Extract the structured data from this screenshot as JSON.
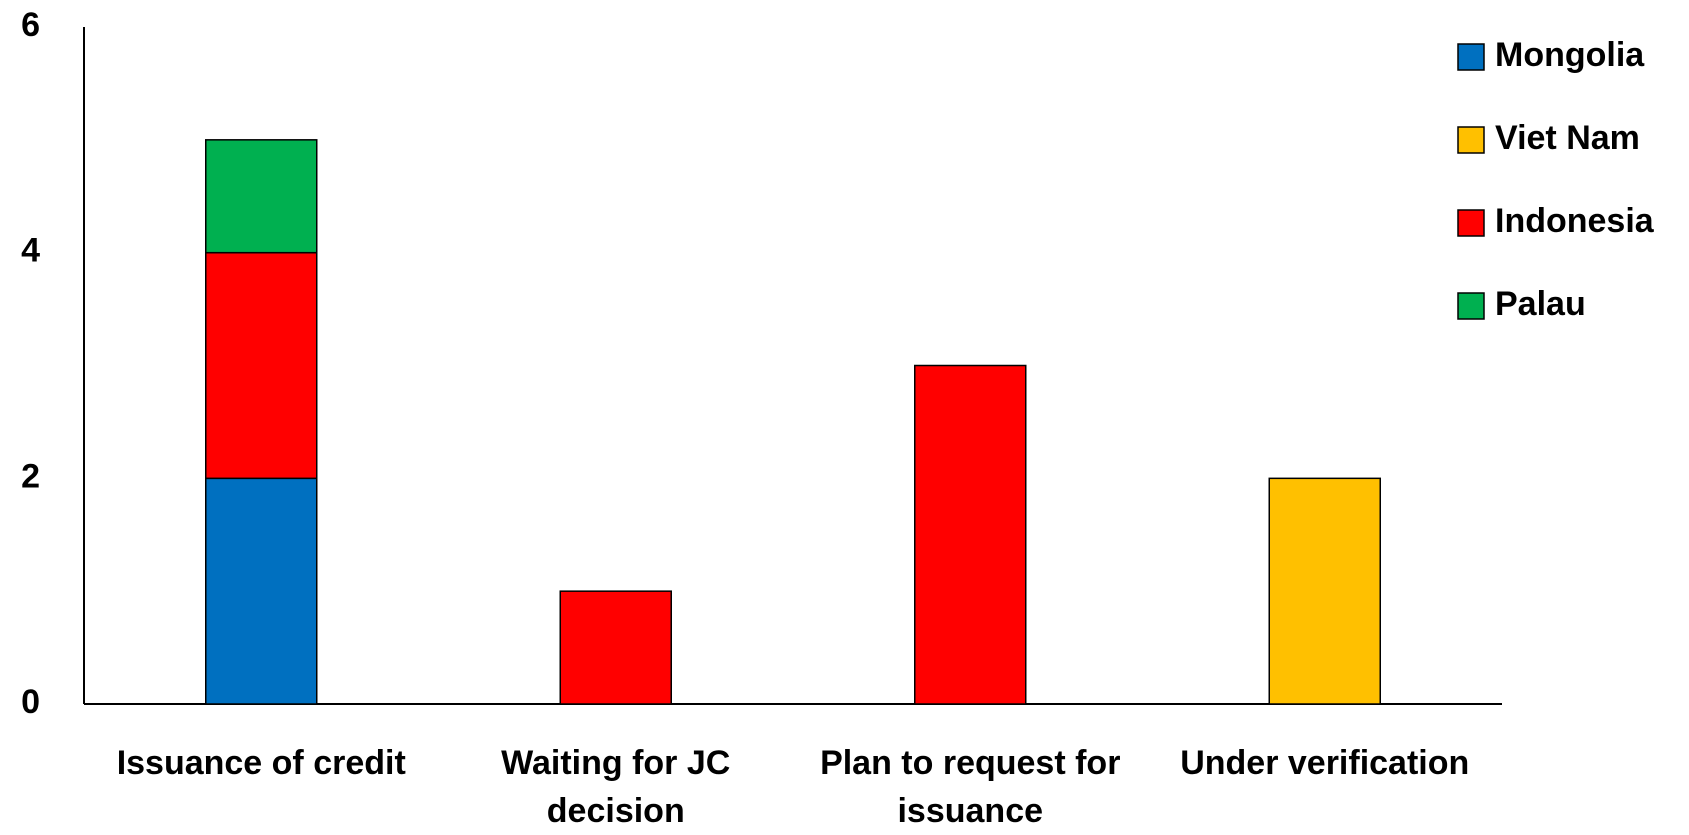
{
  "chart_data": {
    "type": "stacked_bar",
    "categories": [
      "Issuance of credit",
      "Waiting for JC decision",
      "Plan to request for issuance",
      "Under verification"
    ],
    "series": [
      {
        "name": "Mongolia",
        "color": "#0070c0",
        "values": [
          2,
          0,
          0,
          0
        ]
      },
      {
        "name": "Viet Nam",
        "color": "#ffc000",
        "values": [
          0,
          0,
          0,
          2
        ]
      },
      {
        "name": "Indonesia",
        "color": "#ff0000",
        "values": [
          2,
          1,
          3,
          0
        ]
      },
      {
        "name": "Palau",
        "color": "#00b050",
        "values": [
          1,
          0,
          0,
          0
        ]
      }
    ],
    "ylim": [
      0,
      6
    ],
    "yticks": [
      0,
      2,
      4,
      6
    ],
    "grid": false,
    "legend": "top-right"
  }
}
